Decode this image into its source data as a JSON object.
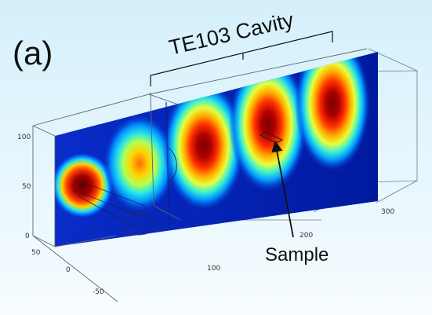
{
  "figure": {
    "panel_label": "(a)",
    "cavity_label": "TE103 Cavity",
    "sample_label": "Sample"
  },
  "axes": {
    "z_ticks": [
      "100",
      "50",
      "0"
    ],
    "y_ticks": [
      "50",
      "0",
      "-50"
    ],
    "x_ticks": [
      "100",
      "200",
      "300"
    ]
  },
  "field_map": {
    "colormap": [
      "#00008f",
      "#0050ff",
      "#00c8ff",
      "#7dff7a",
      "#ffe600",
      "#ff5a00",
      "#8b0000"
    ],
    "lobe_count": 5
  },
  "colors": {
    "background_top": "#d4f0fb",
    "background_bottom": "#f7fcff"
  }
}
